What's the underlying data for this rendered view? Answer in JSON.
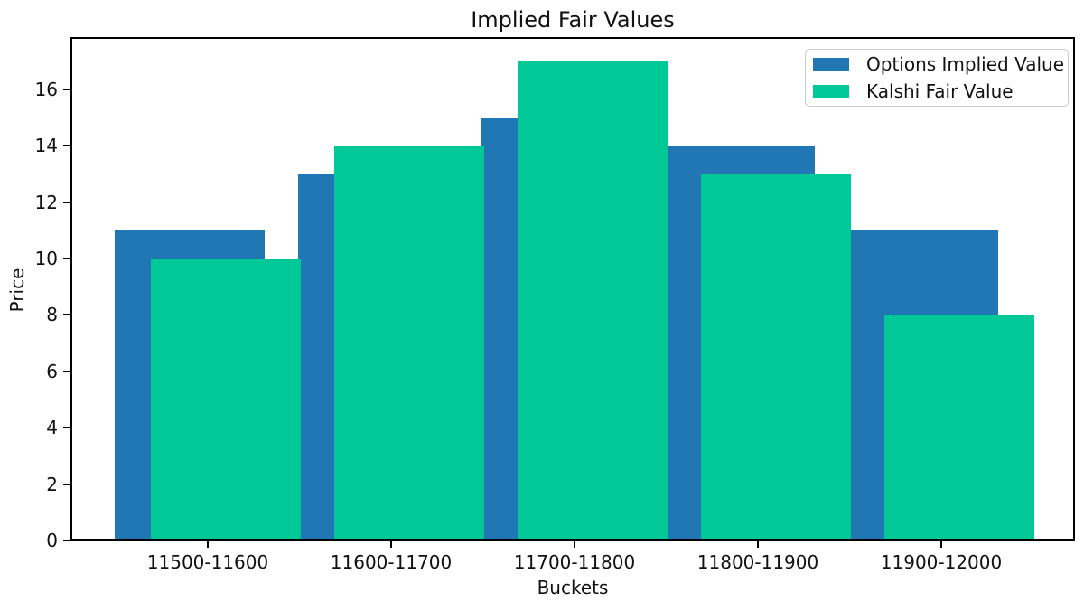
{
  "chart_data": {
    "type": "bar",
    "title": "Implied Fair Values",
    "xlabel": "Buckets",
    "ylabel": "Price",
    "categories": [
      "11500-11600",
      "11600-11700",
      "11700-11800",
      "11800-11900",
      "11900-12000"
    ],
    "series": [
      {
        "name": "Options Implied Value",
        "color": "#2077b4",
        "values": [
          11,
          13,
          15,
          14,
          11
        ]
      },
      {
        "name": "Kalshi Fair Value",
        "color": "#00c896",
        "values": [
          10,
          14,
          17,
          13,
          8
        ]
      }
    ],
    "ylim": [
      0,
      17.85
    ],
    "yticks": [
      0,
      2,
      4,
      6,
      8,
      10,
      12,
      14,
      16
    ],
    "grid": false,
    "legend_position": "upper right",
    "bar_style": "overlapping"
  }
}
